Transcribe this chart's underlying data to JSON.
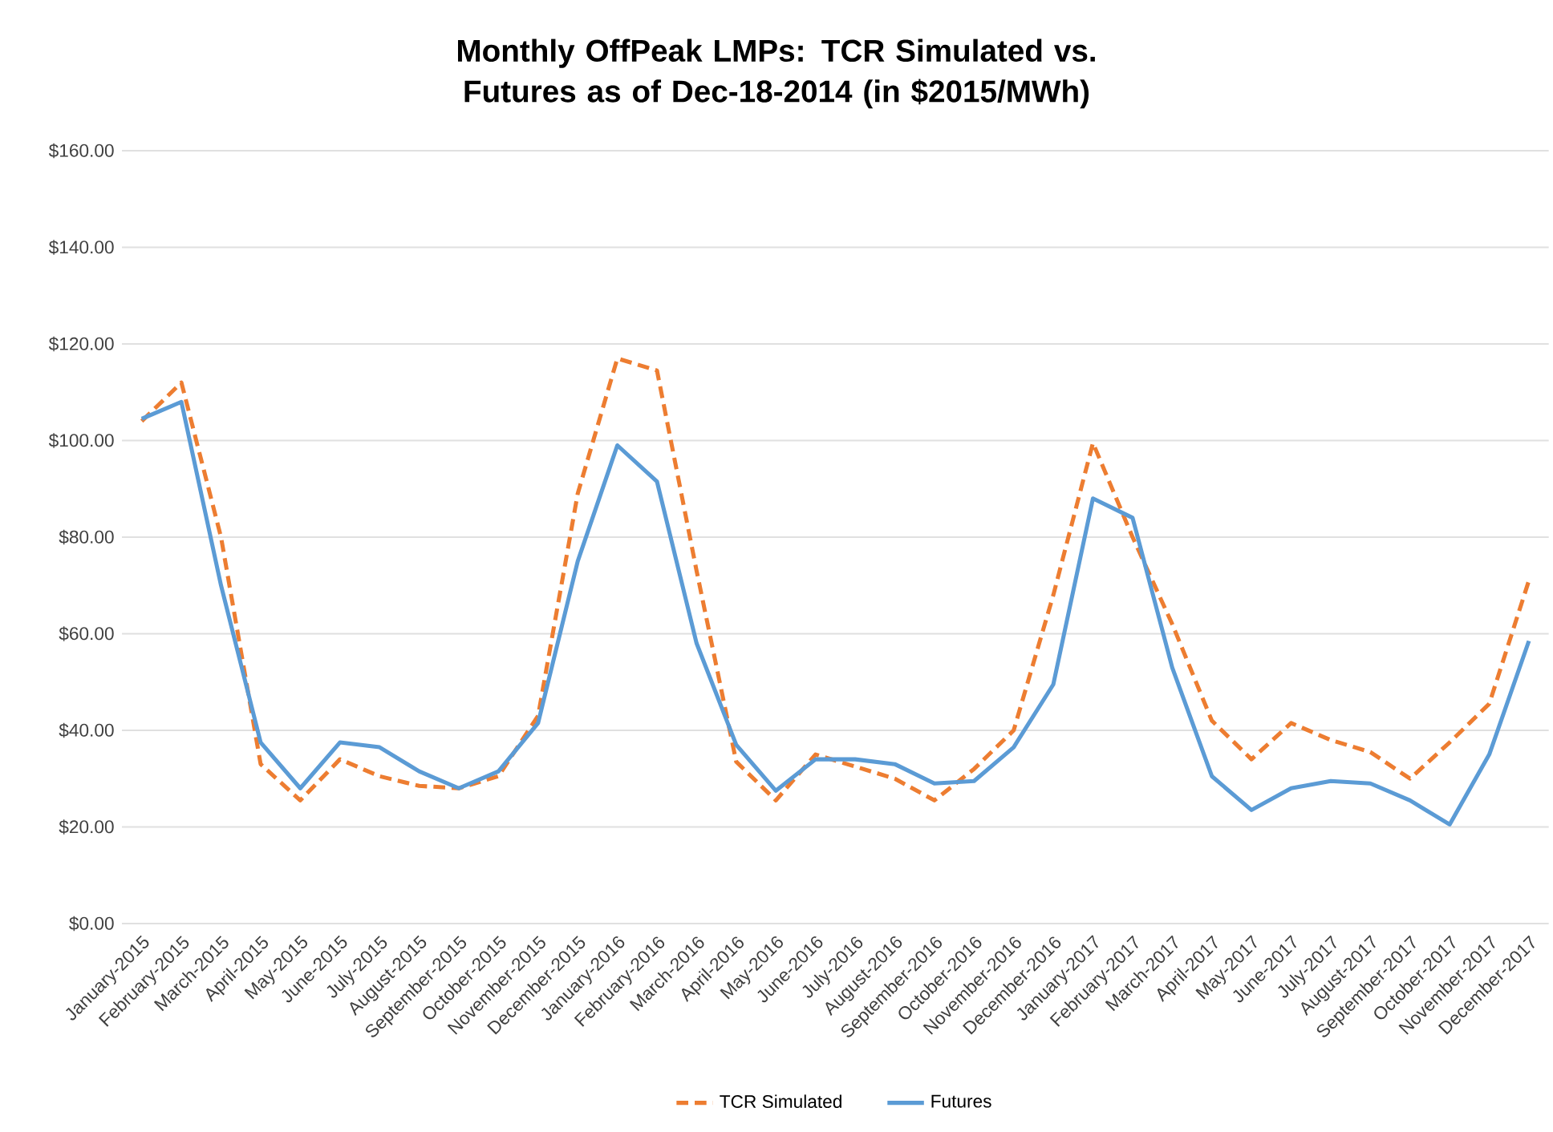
{
  "chart_data": {
    "type": "line",
    "title": "Monthly OffPeak LMPs: TCR Simulated vs. Futures as of Dec-18-2014 (in $2015/MWh)",
    "categories": [
      "January-2015",
      "February-2015",
      "March-2015",
      "April-2015",
      "May-2015",
      "June-2015",
      "July-2015",
      "August-2015",
      "September-2015",
      "October-2015",
      "November-2015",
      "December-2015",
      "January-2016",
      "February-2016",
      "March-2016",
      "April-2016",
      "May-2016",
      "June-2016",
      "July-2016",
      "August-2016",
      "September-2016",
      "October-2016",
      "November-2016",
      "December-2016",
      "January-2017",
      "February-2017",
      "March-2017",
      "April-2017",
      "May-2017",
      "June-2017",
      "July-2017",
      "August-2017",
      "September-2017",
      "October-2017",
      "November-2017",
      "December-2017"
    ],
    "series": [
      {
        "name": "TCR Simulated",
        "color": "#ed7d31",
        "line_style": "dashed",
        "values": [
          104,
          112,
          80,
          33,
          25.5,
          34,
          30.5,
          28.5,
          28,
          30.5,
          43,
          89,
          117,
          114.5,
          73,
          33.5,
          25.5,
          35,
          32.5,
          30,
          25.5,
          32,
          40,
          68,
          99.5,
          80,
          62,
          42,
          34,
          41.5,
          38,
          35.5,
          30,
          37.5,
          45.5,
          71
        ]
      },
      {
        "name": "Futures",
        "color": "#5b9bd5",
        "line_style": "solid",
        "values": [
          104.5,
          108,
          70,
          37.5,
          28,
          37.5,
          36.5,
          31.5,
          28,
          31.5,
          41.5,
          75,
          99,
          91.5,
          58,
          37,
          27.5,
          34,
          34,
          33,
          29,
          29.5,
          36.5,
          49.5,
          88,
          84,
          53,
          30.5,
          23.5,
          28,
          29.5,
          29,
          25.5,
          20.5,
          35,
          58.5
        ]
      }
    ],
    "ylim": [
      0,
      160
    ],
    "yticks": [
      {
        "value": 0,
        "label": "$0.00"
      },
      {
        "value": 20,
        "label": "$20.00"
      },
      {
        "value": 40,
        "label": "$40.00"
      },
      {
        "value": 60,
        "label": "$60.00"
      },
      {
        "value": 80,
        "label": "$80.00"
      },
      {
        "value": 100,
        "label": "$100.00"
      },
      {
        "value": 120,
        "label": "$120.00"
      },
      {
        "value": 140,
        "label": "$140.00"
      },
      {
        "value": 160,
        "label": "$160.00"
      }
    ],
    "grid": "y",
    "legend": "bottom",
    "marker": "none"
  }
}
